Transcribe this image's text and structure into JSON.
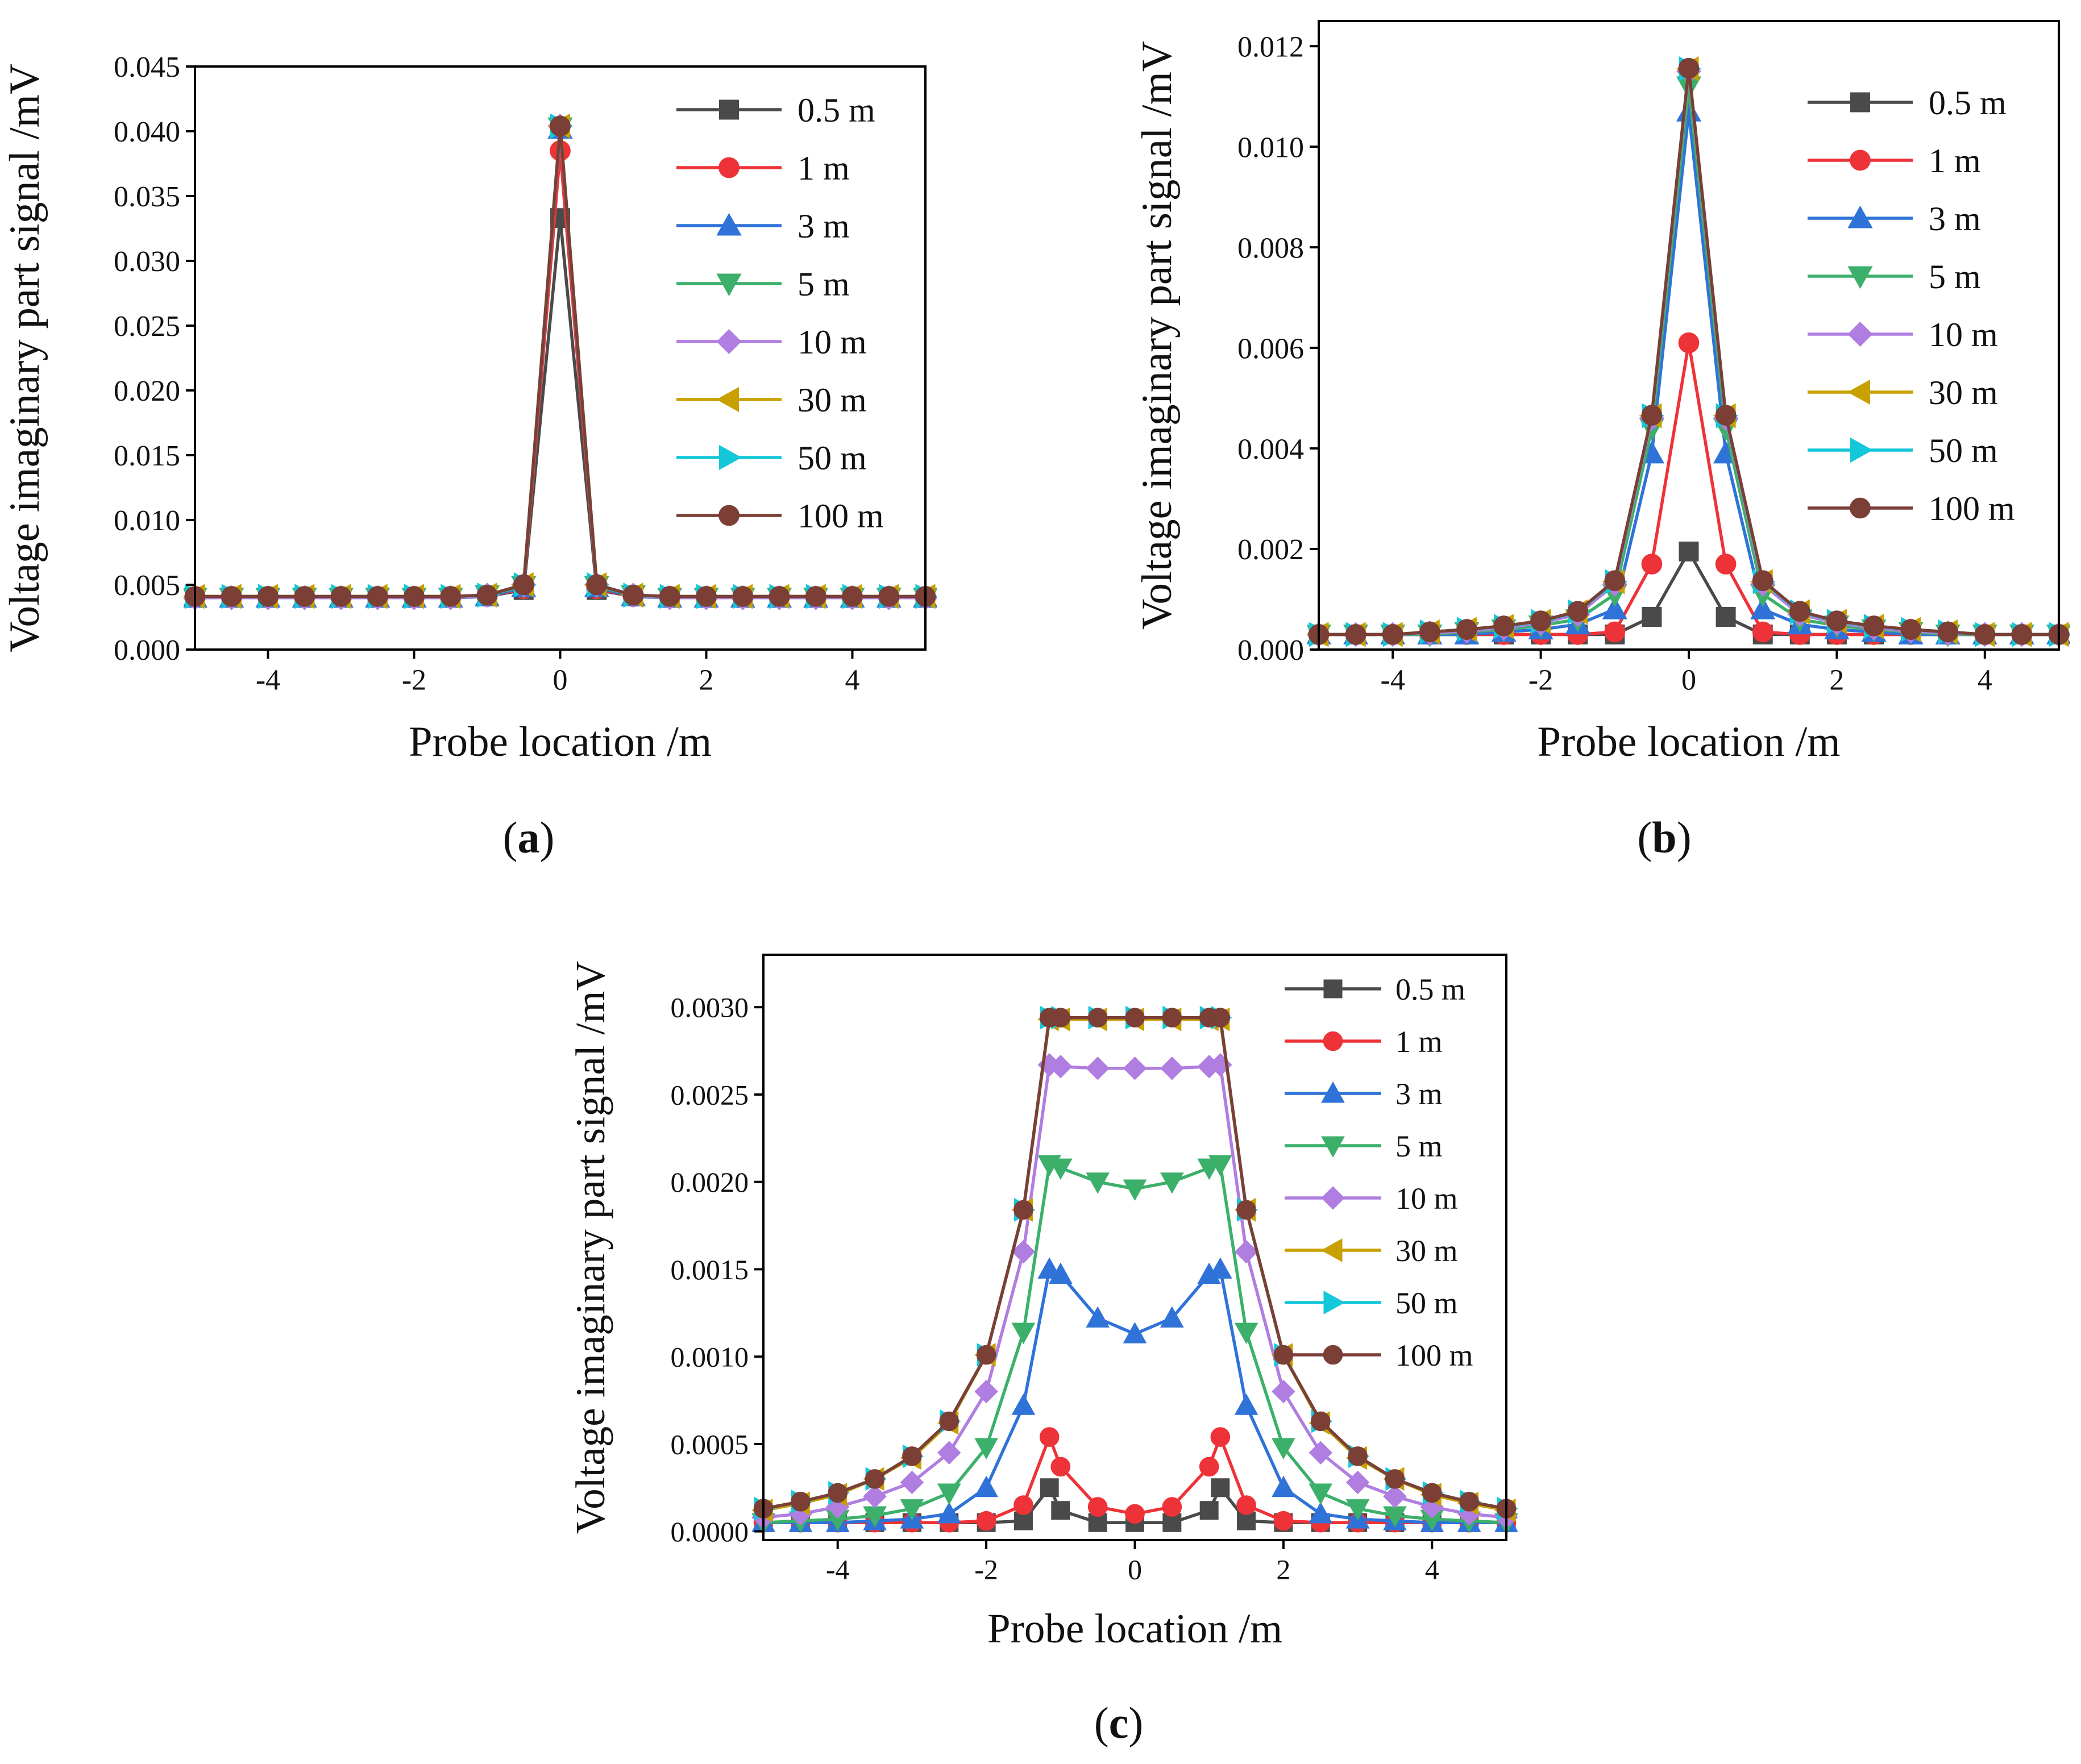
{
  "series_styles": [
    {
      "name": "0.5 m",
      "color": "#4a4a4a",
      "marker": "square"
    },
    {
      "name": "1 m",
      "color": "#ee3338",
      "marker": "circle"
    },
    {
      "name": "3 m",
      "color": "#2f73d9",
      "marker": "triangle-up"
    },
    {
      "name": "5 m",
      "color": "#3cb06a",
      "marker": "triangle-down"
    },
    {
      "name": "10 m",
      "color": "#b07de0",
      "marker": "diamond"
    },
    {
      "name": "30 m",
      "color": "#c8a000",
      "marker": "triangle-left"
    },
    {
      "name": "50 m",
      "color": "#14c7d9",
      "marker": "triangle-right"
    },
    {
      "name": "100 m",
      "color": "#7b3f36",
      "marker": "circle"
    }
  ],
  "chart_data": [
    {
      "type": "line",
      "caption_letter": "a",
      "xlabel": "Probe location  /m",
      "ylabel": "Voltage imaginary part signal /mV",
      "xlim": [
        -5,
        5
      ],
      "ylim": [
        0,
        0.045
      ],
      "xticks": [
        -4,
        -2,
        0,
        2,
        4
      ],
      "xtick_labels": [
        "-4",
        "-2",
        "0",
        "2",
        "4"
      ],
      "yticks": [
        0,
        0.005,
        0.01,
        0.015,
        0.02,
        0.025,
        0.03,
        0.035,
        0.04,
        0.045
      ],
      "ytick_labels": [
        "0.000",
        "0.005",
        "0.010",
        "0.015",
        "0.020",
        "0.025",
        "0.030",
        "0.035",
        "0.040",
        "0.045"
      ],
      "legend": "top-right",
      "x": [
        -5,
        -4.5,
        -4,
        -3.5,
        -3,
        -2.5,
        -2,
        -1.5,
        -1,
        -0.5,
        0,
        0.5,
        1,
        1.5,
        2,
        2.5,
        3,
        3.5,
        4,
        4.5,
        5
      ],
      "series": [
        {
          "name": "0.5 m",
          "values": [
            0.004,
            0.004,
            0.004,
            0.004,
            0.004,
            0.004,
            0.004,
            0.004,
            0.0041,
            0.0046,
            0.0333,
            0.0046,
            0.0041,
            0.004,
            0.004,
            0.004,
            0.004,
            0.004,
            0.004,
            0.004,
            0.004
          ]
        },
        {
          "name": "1 m",
          "values": [
            0.004,
            0.004,
            0.004,
            0.004,
            0.004,
            0.004,
            0.004,
            0.004,
            0.0041,
            0.0047,
            0.0385,
            0.0047,
            0.0041,
            0.004,
            0.004,
            0.004,
            0.004,
            0.004,
            0.004,
            0.004,
            0.004
          ]
        },
        {
          "name": "3 m",
          "values": [
            0.004,
            0.004,
            0.004,
            0.004,
            0.004,
            0.004,
            0.004,
            0.004,
            0.0041,
            0.0048,
            0.0402,
            0.0048,
            0.0041,
            0.004,
            0.004,
            0.004,
            0.004,
            0.004,
            0.004,
            0.004,
            0.004
          ]
        },
        {
          "name": "5 m",
          "values": [
            0.004,
            0.004,
            0.004,
            0.004,
            0.004,
            0.004,
            0.004,
            0.004,
            0.0042,
            0.0049,
            0.0403,
            0.0049,
            0.0042,
            0.004,
            0.004,
            0.004,
            0.004,
            0.004,
            0.004,
            0.004,
            0.004
          ]
        },
        {
          "name": "10 m",
          "values": [
            0.004,
            0.004,
            0.004,
            0.004,
            0.004,
            0.004,
            0.004,
            0.004,
            0.0042,
            0.005,
            0.0404,
            0.005,
            0.0042,
            0.004,
            0.004,
            0.004,
            0.004,
            0.004,
            0.004,
            0.004,
            0.004
          ]
        },
        {
          "name": "30 m",
          "values": [
            0.0041,
            0.0041,
            0.0041,
            0.0041,
            0.0041,
            0.0041,
            0.0041,
            0.0041,
            0.0042,
            0.005,
            0.0404,
            0.005,
            0.0042,
            0.0041,
            0.0041,
            0.0041,
            0.0041,
            0.0041,
            0.0041,
            0.0041,
            0.0041
          ]
        },
        {
          "name": "50 m",
          "values": [
            0.0041,
            0.0041,
            0.0041,
            0.0041,
            0.0041,
            0.0041,
            0.0041,
            0.0041,
            0.0042,
            0.005,
            0.0404,
            0.005,
            0.0042,
            0.0041,
            0.0041,
            0.0041,
            0.0041,
            0.0041,
            0.0041,
            0.0041,
            0.0041
          ]
        },
        {
          "name": "100 m",
          "values": [
            0.0041,
            0.0041,
            0.0041,
            0.0041,
            0.0041,
            0.0041,
            0.0041,
            0.0041,
            0.0042,
            0.005,
            0.0404,
            0.005,
            0.0042,
            0.0041,
            0.0041,
            0.0041,
            0.0041,
            0.0041,
            0.0041,
            0.0041,
            0.0041
          ]
        }
      ]
    },
    {
      "type": "line",
      "caption_letter": "b",
      "xlabel": "Probe location  /m",
      "ylabel": "Voltage imaginary part signal /mV",
      "xlim": [
        -5,
        5
      ],
      "ylim": [
        0,
        0.0125
      ],
      "xticks": [
        -4,
        -2,
        0,
        2,
        4
      ],
      "xtick_labels": [
        "-4",
        "-2",
        "0",
        "2",
        "4"
      ],
      "yticks": [
        0,
        0.002,
        0.004,
        0.006,
        0.008,
        0.01,
        0.012
      ],
      "ytick_labels": [
        "0.000",
        "0.002",
        "0.004",
        "0.006",
        "0.008",
        "0.010",
        "0.012"
      ],
      "legend": "top-right",
      "x": [
        -5,
        -4.5,
        -4,
        -3.5,
        -3,
        -2.5,
        -2,
        -1.5,
        -1,
        -0.5,
        0,
        0.5,
        1,
        1.5,
        2,
        2.5,
        3,
        3.5,
        4,
        4.5,
        5
      ],
      "series": [
        {
          "name": "0.5 m",
          "values": [
            0.0003,
            0.0003,
            0.0003,
            0.0003,
            0.0003,
            0.0003,
            0.0003,
            0.0003,
            0.0003,
            0.00065,
            0.00195,
            0.00065,
            0.0003,
            0.0003,
            0.0003,
            0.0003,
            0.0003,
            0.0003,
            0.0003,
            0.0003,
            0.0003
          ]
        },
        {
          "name": "1 m",
          "values": [
            0.0003,
            0.0003,
            0.0003,
            0.0003,
            0.0003,
            0.0003,
            0.0003,
            0.0003,
            0.00035,
            0.0017,
            0.0061,
            0.0017,
            0.00035,
            0.0003,
            0.0003,
            0.0003,
            0.0003,
            0.0003,
            0.0003,
            0.0003,
            0.0003
          ]
        },
        {
          "name": "3 m",
          "values": [
            0.0003,
            0.0003,
            0.0003,
            0.0003,
            0.0003,
            0.00035,
            0.0004,
            0.0005,
            0.0008,
            0.0039,
            0.0107,
            0.0039,
            0.0008,
            0.0005,
            0.0004,
            0.00035,
            0.0003,
            0.0003,
            0.0003,
            0.0003,
            0.0003
          ]
        },
        {
          "name": "5 m",
          "values": [
            0.0003,
            0.0003,
            0.0003,
            0.0003,
            0.00035,
            0.0004,
            0.00048,
            0.0006,
            0.0011,
            0.0044,
            0.0112,
            0.0044,
            0.0011,
            0.0006,
            0.00048,
            0.0004,
            0.00035,
            0.0003,
            0.0003,
            0.0003,
            0.0003
          ]
        },
        {
          "name": "10 m",
          "values": [
            0.0003,
            0.0003,
            0.0003,
            0.00033,
            0.00037,
            0.00043,
            0.00053,
            0.0007,
            0.0013,
            0.0046,
            0.0115,
            0.0046,
            0.0013,
            0.0007,
            0.00053,
            0.00043,
            0.00037,
            0.00033,
            0.0003,
            0.0003,
            0.0003
          ]
        },
        {
          "name": "30 m",
          "values": [
            0.0003,
            0.0003,
            0.0003,
            0.00035,
            0.0004,
            0.00046,
            0.00056,
            0.00075,
            0.00135,
            0.00465,
            0.01155,
            0.00465,
            0.00135,
            0.00075,
            0.00056,
            0.00046,
            0.0004,
            0.00035,
            0.0003,
            0.0003,
            0.0003
          ]
        },
        {
          "name": "50 m",
          "values": [
            0.0003,
            0.0003,
            0.0003,
            0.00035,
            0.0004,
            0.00046,
            0.00056,
            0.00075,
            0.00135,
            0.00465,
            0.01155,
            0.00465,
            0.00135,
            0.00075,
            0.00056,
            0.00046,
            0.0004,
            0.00035,
            0.0003,
            0.0003,
            0.0003
          ]
        },
        {
          "name": "100 m",
          "values": [
            0.0003,
            0.0003,
            0.0003,
            0.00035,
            0.0004,
            0.00047,
            0.00057,
            0.00076,
            0.00137,
            0.00466,
            0.01156,
            0.00466,
            0.00137,
            0.00076,
            0.00057,
            0.00047,
            0.0004,
            0.00035,
            0.0003,
            0.0003,
            0.0003
          ]
        }
      ]
    },
    {
      "type": "line",
      "caption_letter": "c",
      "xlabel": "Probe location  /m",
      "ylabel": "Voltage imaginary part signal /mV",
      "xlim": [
        -5,
        5
      ],
      "ylim": [
        -5e-05,
        0.0033
      ],
      "xticks": [
        -4,
        -2,
        0,
        2,
        4
      ],
      "xtick_labels": [
        "-4",
        "-2",
        "0",
        "2",
        "4"
      ],
      "yticks": [
        0,
        0.0005,
        0.001,
        0.0015,
        0.002,
        0.0025,
        0.003
      ],
      "ytick_labels": [
        "0.0000",
        "0.0005",
        "0.0010",
        "0.0015",
        "0.0020",
        "0.0025",
        "0.0030"
      ],
      "legend": "top-right",
      "x": [
        -5,
        -4.5,
        -4,
        -3.5,
        -3,
        -2.5,
        -2,
        -1.5,
        -1.15,
        -1,
        -0.5,
        0,
        0.5,
        1,
        1.15,
        1.5,
        2,
        2.5,
        3,
        3.5,
        4,
        4.5,
        5
      ],
      "series": [
        {
          "name": "0.5 m",
          "values": [
            5e-05,
            5e-05,
            5e-05,
            5e-05,
            5e-05,
            5e-05,
            5e-05,
            6e-05,
            0.00025,
            0.00012,
            5e-05,
            5e-05,
            5e-05,
            0.00012,
            0.00025,
            6e-05,
            5e-05,
            5e-05,
            5e-05,
            5e-05,
            5e-05,
            5e-05,
            5e-05
          ]
        },
        {
          "name": "1 m",
          "values": [
            5e-05,
            5e-05,
            5e-05,
            5e-05,
            5e-05,
            5e-05,
            6e-05,
            0.00015,
            0.00054,
            0.00037,
            0.00014,
            0.0001,
            0.00014,
            0.00037,
            0.00054,
            0.00015,
            6e-05,
            5e-05,
            5e-05,
            5e-05,
            5e-05,
            5e-05,
            5e-05
          ]
        },
        {
          "name": "3 m",
          "values": [
            5e-05,
            5e-05,
            5e-05,
            6e-05,
            7e-05,
            0.0001,
            0.00025,
            0.00072,
            0.0015,
            0.00147,
            0.00122,
            0.00113,
            0.00122,
            0.00147,
            0.0015,
            0.00072,
            0.00025,
            0.0001,
            7e-05,
            6e-05,
            5e-05,
            5e-05,
            5e-05
          ]
        },
        {
          "name": "5 m",
          "values": [
            5e-05,
            6e-05,
            7e-05,
            9e-05,
            0.00013,
            0.00022,
            0.00048,
            0.00114,
            0.0021,
            0.00208,
            0.002,
            0.00196,
            0.002,
            0.00208,
            0.0021,
            0.00114,
            0.00048,
            0.00022,
            0.00013,
            9e-05,
            7e-05,
            6e-05,
            5e-05
          ]
        },
        {
          "name": "10 m",
          "values": [
            8e-05,
            0.0001,
            0.00014,
            0.0002,
            0.00028,
            0.00045,
            0.0008,
            0.0016,
            0.00267,
            0.00266,
            0.00265,
            0.00265,
            0.00265,
            0.00266,
            0.00267,
            0.0016,
            0.0008,
            0.00045,
            0.00028,
            0.0002,
            0.00014,
            0.0001,
            8e-05
          ]
        },
        {
          "name": "30 m",
          "values": [
            0.00012,
            0.00016,
            0.00021,
            0.0003,
            0.00042,
            0.00062,
            0.00101,
            0.00184,
            0.00293,
            0.00293,
            0.00293,
            0.00293,
            0.00293,
            0.00293,
            0.00293,
            0.00184,
            0.00101,
            0.00062,
            0.00042,
            0.0003,
            0.00021,
            0.00016,
            0.00012
          ]
        },
        {
          "name": "50 m",
          "values": [
            0.00013,
            0.00017,
            0.00022,
            0.0003,
            0.00043,
            0.00063,
            0.00101,
            0.00184,
            0.00294,
            0.00294,
            0.00294,
            0.00294,
            0.00294,
            0.00294,
            0.00294,
            0.00184,
            0.00101,
            0.00063,
            0.00043,
            0.0003,
            0.00022,
            0.00017,
            0.00013
          ]
        },
        {
          "name": "100 m",
          "values": [
            0.00013,
            0.00017,
            0.00022,
            0.0003,
            0.00043,
            0.00063,
            0.00101,
            0.00184,
            0.00294,
            0.00294,
            0.00294,
            0.00294,
            0.00294,
            0.00294,
            0.00294,
            0.00184,
            0.00101,
            0.00063,
            0.00043,
            0.0003,
            0.00022,
            0.00017,
            0.00013
          ]
        }
      ]
    }
  ]
}
